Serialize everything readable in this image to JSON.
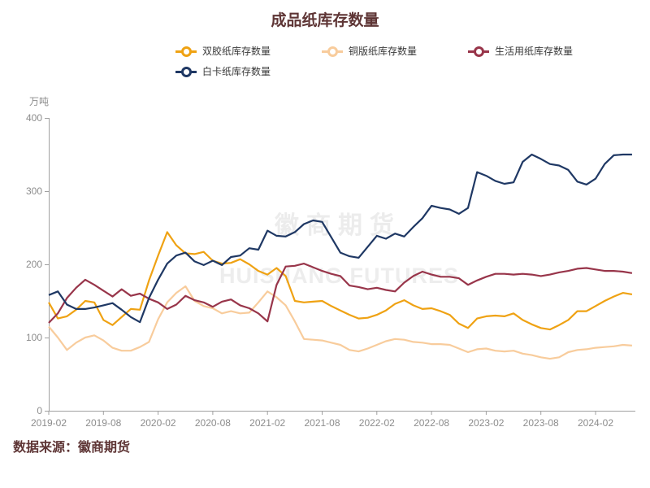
{
  "title": "成品纸库存数量",
  "unit_label": "万吨",
  "source": "数据来源：徽商期货",
  "watermark": {
    "cn": "徽商期货",
    "en": "HUISHANG FUTURES"
  },
  "colors": {
    "title_text": "#5e3535",
    "axis_text": "#8c8c8c",
    "axis_line": "#a0a0a0",
    "legend_text": "#3a3a3a",
    "watermark": "#ececec",
    "background": "#ffffff"
  },
  "chart_data": {
    "type": "line",
    "title": "成品纸库存数量",
    "ylabel": "万吨",
    "ylim": [
      0,
      400
    ],
    "yticks": [
      0,
      100,
      200,
      300,
      400
    ],
    "grid": false,
    "legend_position": "top",
    "x_tick_labels": [
      "2019-02",
      "2019-08",
      "2020-02",
      "2020-08",
      "2021-02",
      "2021-08",
      "2022-02",
      "2022-08",
      "2023-02",
      "2023-08",
      "2024-02"
    ],
    "x": [
      "2019-02",
      "2019-03",
      "2019-04",
      "2019-05",
      "2019-06",
      "2019-07",
      "2019-08",
      "2019-09",
      "2019-10",
      "2019-11",
      "2019-12",
      "2020-01",
      "2020-02",
      "2020-03",
      "2020-04",
      "2020-05",
      "2020-06",
      "2020-07",
      "2020-08",
      "2020-09",
      "2020-10",
      "2020-11",
      "2020-12",
      "2021-01",
      "2021-02",
      "2021-03",
      "2021-04",
      "2021-05",
      "2021-06",
      "2021-07",
      "2021-08",
      "2021-09",
      "2021-10",
      "2021-11",
      "2021-12",
      "2022-01",
      "2022-02",
      "2022-03",
      "2022-04",
      "2022-05",
      "2022-06",
      "2022-07",
      "2022-08",
      "2022-09",
      "2022-10",
      "2022-11",
      "2022-12",
      "2023-01",
      "2023-02",
      "2023-03",
      "2023-04",
      "2023-05",
      "2023-06",
      "2023-07",
      "2023-08",
      "2023-09",
      "2023-10",
      "2023-11",
      "2023-12",
      "2024-01",
      "2024-02",
      "2024-03",
      "2024-04",
      "2024-05",
      "2024-06"
    ],
    "series": [
      {
        "name": "双胶纸库存数量",
        "color": "#efa213",
        "values": [
          148,
          126,
          129,
          138,
          150,
          148,
          124,
          117,
          128,
          139,
          138,
          178,
          212,
          244,
          226,
          215,
          214,
          217,
          205,
          201,
          202,
          207,
          200,
          191,
          186,
          195,
          184,
          150,
          148,
          149,
          150,
          143,
          137,
          131,
          126,
          127,
          131,
          137,
          146,
          151,
          144,
          139,
          140,
          136,
          131,
          119,
          113,
          126,
          129,
          130,
          129,
          133,
          124,
          118,
          113,
          111,
          117,
          124,
          136,
          136,
          143,
          150,
          156,
          161,
          159
        ]
      },
      {
        "name": "铜版纸库存数量",
        "color": "#f8cc9c",
        "values": [
          115,
          100,
          83,
          93,
          100,
          103,
          96,
          86,
          82,
          82,
          87,
          94,
          125,
          148,
          161,
          170,
          150,
          143,
          140,
          133,
          136,
          133,
          134,
          148,
          163,
          155,
          144,
          122,
          98,
          97,
          96,
          93,
          90,
          83,
          81,
          85,
          90,
          95,
          98,
          97,
          94,
          93,
          91,
          91,
          90,
          85,
          80,
          84,
          85,
          82,
          81,
          82,
          78,
          76,
          73,
          71,
          73,
          80,
          83,
          84,
          86,
          87,
          88,
          90,
          89
        ]
      },
      {
        "name": "生活用纸库存数量",
        "color": "#98354a",
        "values": [
          120,
          133,
          154,
          168,
          179,
          172,
          164,
          156,
          166,
          157,
          160,
          153,
          148,
          139,
          145,
          157,
          151,
          148,
          142,
          149,
          152,
          144,
          140,
          133,
          122,
          172,
          197,
          198,
          201,
          196,
          191,
          187,
          184,
          171,
          169,
          166,
          168,
          165,
          163,
          175,
          184,
          190,
          186,
          183,
          183,
          181,
          172,
          178,
          183,
          187,
          187,
          186,
          187,
          186,
          184,
          186,
          189,
          191,
          194,
          195,
          193,
          191,
          191,
          190,
          188
        ]
      },
      {
        "name": "白卡纸库存数量",
        "color": "#1f3864",
        "values": [
          158,
          163,
          145,
          139,
          139,
          141,
          144,
          147,
          138,
          128,
          121,
          154,
          179,
          201,
          212,
          216,
          204,
          199,
          205,
          199,
          210,
          212,
          222,
          220,
          246,
          239,
          238,
          244,
          255,
          260,
          258,
          237,
          216,
          211,
          209,
          224,
          239,
          235,
          242,
          238,
          251,
          263,
          280,
          277,
          275,
          269,
          277,
          326,
          321,
          314,
          310,
          312,
          340,
          350,
          344,
          337,
          335,
          329,
          313,
          309,
          317,
          337,
          349,
          350,
          350
        ]
      }
    ]
  }
}
